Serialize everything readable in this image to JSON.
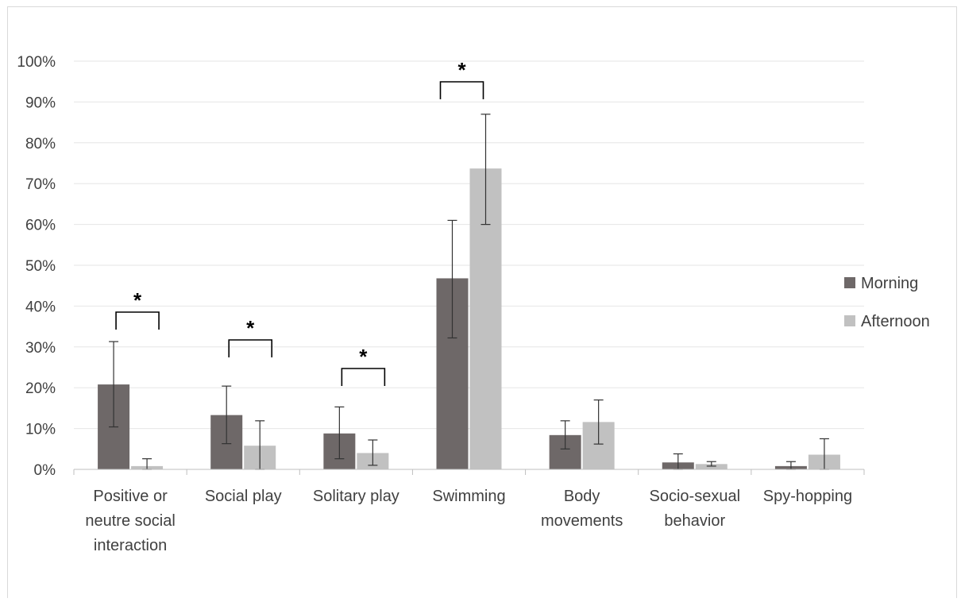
{
  "chart_data": {
    "type": "bar",
    "title": "",
    "xlabel": "",
    "ylabel": "",
    "ylim": [
      0,
      100
    ],
    "y_ticks": [
      "0%",
      "10%",
      "20%",
      "30%",
      "40%",
      "50%",
      "60%",
      "70%",
      "80%",
      "90%",
      "100%"
    ],
    "grid": true,
    "legend_position": "right",
    "categories": [
      [
        "Positive or",
        "neutre social",
        "interaction"
      ],
      [
        "Social play"
      ],
      [
        "Solitary play"
      ],
      [
        "Swimming"
      ],
      [
        "Body",
        "movements"
      ],
      [
        "Socio-sexual",
        "behavior"
      ],
      [
        "Spy-hopping"
      ]
    ],
    "series": [
      {
        "name": "Morning",
        "color": "#6e6868",
        "values": [
          20.8,
          13.3,
          8.8,
          46.8,
          8.4,
          1.7,
          0.8
        ],
        "error_low": [
          10.4,
          6.3,
          2.6,
          32.2,
          5.0,
          0.0,
          0.0
        ],
        "error_high": [
          31.3,
          20.4,
          15.3,
          61.0,
          11.9,
          3.8,
          1.9
        ]
      },
      {
        "name": "Afternoon",
        "color": "#c1c1c1",
        "values": [
          0.8,
          5.8,
          4.0,
          73.7,
          11.6,
          1.3,
          3.6
        ],
        "error_low": [
          0.0,
          0.0,
          1.0,
          60.0,
          6.2,
          0.8,
          0.0
        ],
        "error_high": [
          2.6,
          11.9,
          7.2,
          87.0,
          17.0,
          1.9,
          7.5
        ]
      }
    ],
    "significance": [
      {
        "category_index": 0,
        "label": "*"
      },
      {
        "category_index": 1,
        "label": "*"
      },
      {
        "category_index": 2,
        "label": "*"
      },
      {
        "category_index": 3,
        "label": "*"
      }
    ]
  }
}
